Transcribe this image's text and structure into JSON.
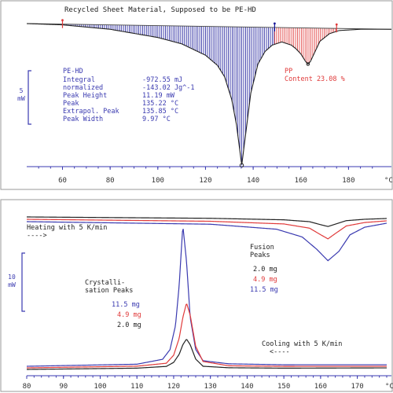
{
  "chart_data": [
    {
      "type": "line",
      "title": "Recycled Sheet Material, Supposed to be PE-HD",
      "x_unit": "°C",
      "xlim": [
        45,
        198
      ],
      "x_ticks": [
        60,
        80,
        100,
        120,
        140,
        160,
        180
      ],
      "scale_bar": {
        "value": "5",
        "unit": "mW"
      },
      "grid": false,
      "annotations_pe": {
        "name": "PE-HD",
        "rows": [
          {
            "label": "Integral",
            "value": "-972.55 mJ"
          },
          {
            "label": "  normalized",
            "value": "-143.02 Jg^-1"
          },
          {
            "label": "Peak Height",
            "value": "11.19 mW"
          },
          {
            "label": "Peak",
            "value": "135.22 °C"
          },
          {
            "label": "Extrapol. Peak",
            "value": "135.85 °C"
          },
          {
            "label": "Peak Width",
            "value": "9.97 °C"
          }
        ]
      },
      "annotations_pp": {
        "name": "PP",
        "content_label": "Content 23.08 %"
      },
      "series": [
        {
          "color": "#3a3ab0",
          "x": [
            45,
            60,
            80,
            100,
            110,
            120,
            125,
            128,
            131,
            133,
            135.2,
            137,
            139,
            142,
            145,
            148,
            152,
            156,
            158,
            160,
            162,
            163,
            164,
            166,
            168,
            172,
            176,
            185,
            198
          ],
          "y": [
            0,
            -0.1,
            -0.45,
            -1.1,
            -1.6,
            -2.5,
            -3.3,
            -4.2,
            -6.0,
            -8.0,
            -11.2,
            -8.5,
            -5.5,
            -3.2,
            -2.2,
            -1.7,
            -1.45,
            -1.7,
            -2.0,
            -2.4,
            -3.0,
            -3.2,
            -3.0,
            -2.2,
            -1.4,
            -0.8,
            -0.55,
            -0.45,
            -0.45
          ]
        }
      ],
      "integration_regions": [
        {
          "name": "PE-HD",
          "color": "#1a1a9a",
          "x_start": 60,
          "x_end": 149
        },
        {
          "name": "PP",
          "color": "#e03a3a",
          "x_start": 149,
          "x_end": 175
        }
      ],
      "integration_limit_markers_x": [
        60,
        149,
        175
      ]
    },
    {
      "type": "line",
      "xlim": [
        80,
        178
      ],
      "x_ticks": [
        80,
        90,
        100,
        110,
        120,
        130,
        140,
        150,
        160,
        170
      ],
      "x_unit": "°C",
      "scale_bar": {
        "value": "10",
        "unit": "mW"
      },
      "grid": false,
      "labels": {
        "heating": "Heating with 5 K/min",
        "heating_arrow": "---->",
        "cooling": "Cooling with 5 K/min",
        "cooling_arrow": "<----",
        "fusion_title": [
          "Fusion",
          "Peaks"
        ],
        "fusion_masses": [
          {
            "text": "2.0 mg",
            "color": "#222222"
          },
          {
            "text": "4.9 mg",
            "color": "#e03a3a"
          },
          {
            "text": "11.5 mg",
            "color": "#3a3ab0"
          }
        ],
        "cryst_title": [
          "Crystalli-",
          "sation Peaks"
        ],
        "cryst_masses": [
          {
            "text": "11.5 mg",
            "color": "#3a3ab0"
          },
          {
            "text": "4.9 mg",
            "color": "#e03a3a"
          },
          {
            "text": "2.0 mg",
            "color": "#222222"
          }
        ]
      },
      "heating_series": [
        {
          "name": "2.0 mg",
          "color": "#222222",
          "x": [
            80,
            130,
            150,
            157,
            160,
            162,
            164,
            167,
            172,
            178
          ],
          "y": [
            0,
            -0.1,
            -0.3,
            -0.6,
            -1.1,
            -1.4,
            -1.0,
            -0.4,
            -0.15,
            0
          ]
        },
        {
          "name": "4.9 mg",
          "color": "#e03a3a",
          "x": [
            80,
            130,
            150,
            157,
            160,
            162,
            164,
            167,
            172,
            178
          ],
          "y": [
            0,
            -0.2,
            -0.6,
            -1.3,
            -2.4,
            -3.1,
            -2.2,
            -0.9,
            -0.3,
            0
          ]
        },
        {
          "name": "11.5 mg",
          "color": "#3a3ab0",
          "x": [
            80,
            130,
            148,
            155,
            159,
            162,
            165,
            168,
            172,
            178
          ],
          "y": [
            0,
            -0.3,
            -1.1,
            -2.4,
            -4.5,
            -6.4,
            -4.8,
            -2.0,
            -0.7,
            0
          ]
        }
      ],
      "cooling_series": [
        {
          "name": "11.5 mg",
          "color": "#3a3ab0",
          "x": [
            80,
            110,
            117,
            119,
            120.5,
            121.5,
            122.5,
            123.5,
            124.5,
            126,
            128,
            135,
            150,
            178
          ],
          "y": [
            0,
            0.2,
            0.8,
            2.0,
            5.0,
            10.0,
            17.5,
            13.0,
            6.0,
            2.0,
            0.6,
            0.2,
            0.05,
            0
          ]
        },
        {
          "name": "4.9 mg",
          "color": "#e03a3a",
          "x": [
            80,
            110,
            118,
            120,
            121.5,
            122.5,
            123.5,
            124.5,
            126,
            128,
            135,
            150,
            178
          ],
          "y": [
            0,
            0.15,
            0.5,
            1.5,
            3.6,
            6.2,
            8.0,
            6.5,
            2.6,
            0.7,
            0.15,
            0.05,
            0
          ]
        },
        {
          "name": "2.0 mg",
          "color": "#222222",
          "x": [
            80,
            110,
            118,
            120,
            121.5,
            122.5,
            123.5,
            124.5,
            126,
            128,
            135,
            150,
            178
          ],
          "y": [
            0,
            0.1,
            0.3,
            0.8,
            1.8,
            3.0,
            3.7,
            3.0,
            1.2,
            0.3,
            0.1,
            0.02,
            0
          ]
        }
      ]
    }
  ]
}
